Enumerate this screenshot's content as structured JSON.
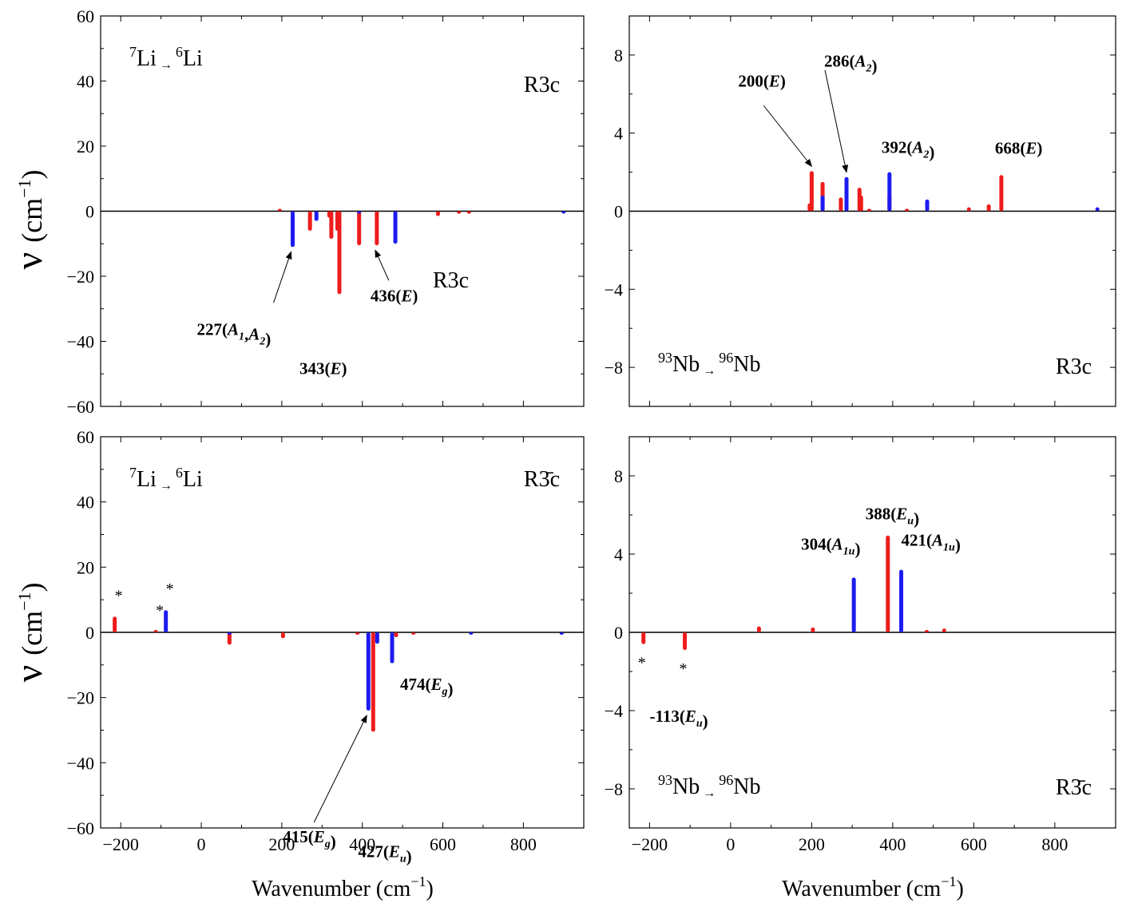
{
  "figure": {
    "xlabel_text": "Wavenumber (cm",
    "xlabel_exp": "−1",
    "xlabel_close": ")",
    "ylabel_symbol": "ν",
    "ylabel_unit_text": "(cm",
    "ylabel_unit_exp": "−1",
    "ylabel_unit_close": ")"
  },
  "chart_data": [
    {
      "id": "top-left",
      "type": "bar",
      "isotope": {
        "from_mass": "7",
        "from_el": "Li",
        "to_mass": "6",
        "to_el": "Li"
      },
      "space_group_label": "R3c",
      "xlim": [
        -250,
        950
      ],
      "ylim": [
        -60,
        60
      ],
      "xticks": [
        -200,
        0,
        200,
        400,
        600,
        800
      ],
      "yticks": [
        -60,
        -40,
        -20,
        0,
        20,
        40,
        60
      ],
      "show_xtick_labels": false,
      "series": [
        {
          "name": "red",
          "color": "#ee1c1c",
          "x": [
            195,
            270,
            318,
            323,
            338,
            343,
            392,
            436,
            588,
            640,
            665
          ],
          "values": [
            0.3,
            -6,
            -2,
            -8.5,
            -6,
            -25.5,
            -10.5,
            -10.5,
            -1.5,
            -0.8,
            -0.8
          ]
        },
        {
          "name": "blue",
          "color": "#1c1cf0",
          "x": [
            227,
            286,
            392,
            482,
            900
          ],
          "values": [
            -11,
            -3,
            -0.5,
            -10,
            -0.5
          ]
        }
      ],
      "annotations": [
        {
          "id": "ann-227",
          "num": "227(",
          "parts": [
            [
              "A",
              "1"
            ],
            [
              "A",
              "2"
            ]
          ],
          "close": ")",
          "x": 227,
          "y": -11,
          "arrow": true
        },
        {
          "id": "ann-343",
          "num": "343(",
          "parts": [
            [
              "E",
              ""
            ]
          ],
          "close": ")",
          "x": 343,
          "y": -25.5,
          "arrow": false
        },
        {
          "id": "ann-436",
          "num": "436(",
          "parts": [
            [
              "E",
              ""
            ]
          ],
          "close": ")",
          "x": 436,
          "y": -10.5,
          "arrow": true
        }
      ],
      "extra_text": [
        "R3c"
      ],
      "stars": []
    },
    {
      "id": "top-right",
      "type": "bar",
      "isotope": {
        "from_mass": "93",
        "from_el": "Nb",
        "to_mass": "96",
        "to_el": "Nb"
      },
      "space_group_label": "R3c",
      "xlim": [
        -250,
        950
      ],
      "ylim": [
        -10,
        10
      ],
      "xticks": [
        -200,
        0,
        200,
        400,
        600,
        800
      ],
      "yticks": [
        -8,
        -4,
        0,
        4,
        8
      ],
      "show_xtick_labels": false,
      "series": [
        {
          "name": "red",
          "color": "#ee1c1c",
          "x": [
            195,
            200,
            227,
            272,
            318,
            322,
            342,
            392,
            435,
            588,
            637,
            668
          ],
          "values": [
            0.4,
            2.05,
            1.5,
            0.7,
            1.2,
            0.8,
            0.05,
            0.9,
            0.05,
            0.2,
            0.35,
            1.85
          ]
        },
        {
          "name": "blue",
          "color": "#1c1cf0",
          "x": [
            227,
            286,
            392,
            485,
            905
          ],
          "values": [
            0.8,
            1.75,
            2.0,
            0.6,
            0.2
          ]
        }
      ],
      "annotations": [
        {
          "id": "ann-200",
          "num": "200(",
          "parts": [
            [
              "E",
              ""
            ]
          ],
          "close": ")",
          "x": 200,
          "y": 2.05,
          "arrow": true
        },
        {
          "id": "ann-286",
          "num": "286(",
          "parts": [
            [
              "A",
              "2"
            ]
          ],
          "close": ")",
          "x": 286,
          "y": 1.75,
          "arrow": true
        },
        {
          "id": "ann-392",
          "num": "392(",
          "parts": [
            [
              "A",
              "2"
            ]
          ],
          "close": ")",
          "x": 392,
          "y": 2.0,
          "arrow": false
        },
        {
          "id": "ann-668",
          "num": "668(",
          "parts": [
            [
              "E",
              ""
            ]
          ],
          "close": ")",
          "x": 668,
          "y": 1.85,
          "arrow": false
        }
      ],
      "extra_text": [],
      "stars": []
    },
    {
      "id": "bottom-left",
      "type": "bar",
      "isotope": {
        "from_mass": "7",
        "from_el": "Li",
        "to_mass": "6",
        "to_el": "Li"
      },
      "space_group_label": "R3̄c",
      "xlim": [
        -250,
        950
      ],
      "ylim": [
        -60,
        60
      ],
      "xticks": [
        -200,
        0,
        200,
        400,
        600,
        800
      ],
      "yticks": [
        -60,
        -40,
        -20,
        0,
        20,
        40,
        60
      ],
      "show_xtick_labels": true,
      "series": [
        {
          "name": "red",
          "color": "#ee1c1c",
          "x": [
            -215,
            -113,
            70,
            203,
            388,
            427,
            484,
            527
          ],
          "values": [
            4.8,
            0.2,
            -3.8,
            -1.8,
            -0.5,
            -30.5,
            -1.5,
            -0.3
          ]
        },
        {
          "name": "blue",
          "color": "#1c1cf0",
          "x": [
            -88,
            70,
            415,
            437,
            474,
            670,
            895
          ],
          "values": [
            6.8,
            -0.5,
            -24,
            -3.5,
            -9.5,
            -0.3,
            -0.3
          ]
        }
      ],
      "annotations": [
        {
          "id": "ann-474",
          "num": "474(",
          "parts": [
            [
              "E",
              "g"
            ]
          ],
          "close": ")",
          "x": 474,
          "y": -9.5,
          "arrow": false
        },
        {
          "id": "ann-415",
          "num": "415(",
          "parts": [
            [
              "E",
              "g"
            ]
          ],
          "close": ")",
          "x": 415,
          "y": -24,
          "arrow": true
        },
        {
          "id": "ann-427",
          "num": "427(",
          "parts": [
            [
              "E",
              "u"
            ]
          ],
          "close": ")",
          "x": 427,
          "y": -30.5,
          "arrow": false
        }
      ],
      "extra_text": [],
      "stars": [
        {
          "x": -215,
          "y": 4.8
        },
        {
          "x": -113,
          "y": 0.2
        },
        {
          "x": -88,
          "y": 6.8
        }
      ]
    },
    {
      "id": "bottom-right",
      "type": "bar",
      "isotope": {
        "from_mass": "93",
        "from_el": "Nb",
        "to_mass": "96",
        "to_el": "Nb"
      },
      "space_group_label": "R3̄c",
      "xlim": [
        -250,
        950
      ],
      "ylim": [
        -10,
        10
      ],
      "xticks": [
        -200,
        0,
        200,
        400,
        600,
        800
      ],
      "yticks": [
        -8,
        -4,
        0,
        4,
        8
      ],
      "show_xtick_labels": true,
      "series": [
        {
          "name": "red",
          "color": "#ee1c1c",
          "x": [
            -215,
            -113,
            70,
            203,
            388,
            484,
            527
          ],
          "values": [
            -0.6,
            -0.9,
            0.3,
            0.25,
            4.95,
            0.05,
            0.2
          ]
        },
        {
          "name": "blue",
          "color": "#1c1cf0",
          "x": [
            304,
            421
          ],
          "values": [
            2.8,
            3.2
          ]
        }
      ],
      "annotations": [
        {
          "id": "ann-388",
          "num": "388(",
          "parts": [
            [
              "E",
              "u"
            ]
          ],
          "close": ")",
          "x": 388,
          "y": 4.95,
          "arrow": false
        },
        {
          "id": "ann-304",
          "num": "304(",
          "parts": [
            [
              "A",
              "1u"
            ]
          ],
          "close": ")",
          "x": 304,
          "y": 2.8,
          "arrow": false
        },
        {
          "id": "ann-421",
          "num": "421(",
          "parts": [
            [
              "A",
              "1u"
            ]
          ],
          "close": ")",
          "x": 421,
          "y": 3.2,
          "arrow": false
        },
        {
          "id": "ann-neg113",
          "num": "-113(",
          "parts": [
            [
              "E",
              "u"
            ]
          ],
          "close": ")",
          "x": -113,
          "y": -0.9,
          "arrow": false
        }
      ],
      "extra_text": [],
      "stars": [
        {
          "x": -215,
          "y": -0.6
        },
        {
          "x": -113,
          "y": -0.9
        }
      ]
    }
  ]
}
